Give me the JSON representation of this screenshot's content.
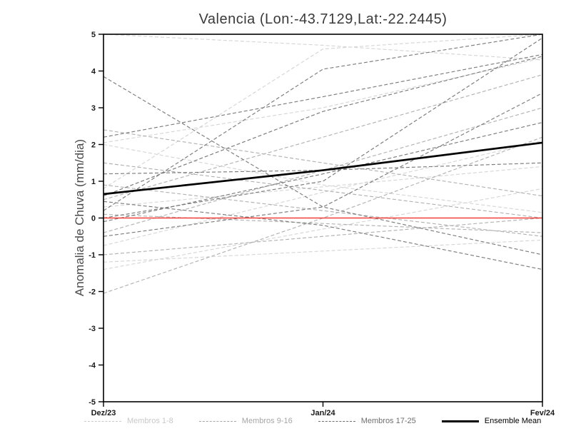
{
  "title": "Valencia (Lon:-43.7129,Lat:-22.2445)",
  "ylabel": "Anomalia de Chuva (mm/dia)",
  "chart_data": {
    "type": "line",
    "title": "Valencia (Lon:-43.7129,Lat:-22.2445)",
    "xlabel": "",
    "ylabel": "Anomalia de Chuva (mm/dia)",
    "categories": [
      "Dez/23",
      "Jan/24",
      "Fev/24"
    ],
    "ylim": [
      -5,
      5
    ],
    "yticks": [
      -5,
      -4,
      -3,
      -2,
      -1,
      0,
      1,
      2,
      3,
      4,
      5
    ],
    "grid": false,
    "legend_position": "bottom",
    "zero_line": {
      "y": 0,
      "color": "#f04038"
    },
    "groups": [
      {
        "name": "Membros 1-8",
        "color": "#d6d6d6",
        "style": "dashed",
        "series": [
          [
            2.05,
            3.0,
            4.35
          ],
          [
            2.0,
            0.9,
            0.15
          ],
          [
            0.8,
            4.6,
            5.0
          ],
          [
            -1.4,
            -0.3,
            0.8
          ],
          [
            0.3,
            0.85,
            1.4
          ],
          [
            -0.75,
            0.7,
            2.1
          ],
          [
            5.0,
            4.7,
            4.3
          ],
          [
            -1.2,
            -0.9,
            -0.6
          ]
        ]
      },
      {
        "name": "Membros 9-16",
        "color": "#b2b2b2",
        "style": "dashed",
        "series": [
          [
            -2.05,
            0.0,
            2.2
          ],
          [
            0.1,
            -0.15,
            -0.4
          ],
          [
            1.5,
            0.75,
            0.0
          ],
          [
            -0.4,
            1.3,
            3.0
          ],
          [
            2.4,
            1.5,
            0.6
          ],
          [
            0.5,
            2.2,
            3.9
          ],
          [
            -1.0,
            -0.5,
            0.0
          ],
          [
            0.9,
            0.2,
            -0.5
          ]
        ]
      },
      {
        "name": "Membros 17-25",
        "color": "#7c7c7c",
        "style": "dashed",
        "series": [
          [
            3.85,
            0.3,
            -1.0
          ],
          [
            0.2,
            4.05,
            5.0
          ],
          [
            -0.1,
            1.2,
            2.6
          ],
          [
            0.6,
            2.9,
            4.4
          ],
          [
            1.2,
            1.3,
            1.5
          ],
          [
            -0.5,
            0.3,
            3.4
          ],
          [
            0.0,
            1.0,
            4.9
          ],
          [
            2.2,
            3.3,
            4.45
          ],
          [
            0.45,
            -0.2,
            -1.4
          ]
        ]
      }
    ],
    "mean": {
      "name": "Ensemble Mean",
      "color": "#000000",
      "values": [
        0.65,
        1.3,
        2.05
      ]
    }
  },
  "legend": {
    "items": [
      {
        "label": "Membros 1-8",
        "color": "#c9c9c9",
        "dashed": true
      },
      {
        "label": "Membros 9-16",
        "color": "#a6a6a6",
        "dashed": true
      },
      {
        "label": "Membros 17-25",
        "color": "#6f6f6f",
        "dashed": true
      },
      {
        "label": "Ensemble Mean",
        "color": "#000000",
        "dashed": false
      }
    ]
  }
}
